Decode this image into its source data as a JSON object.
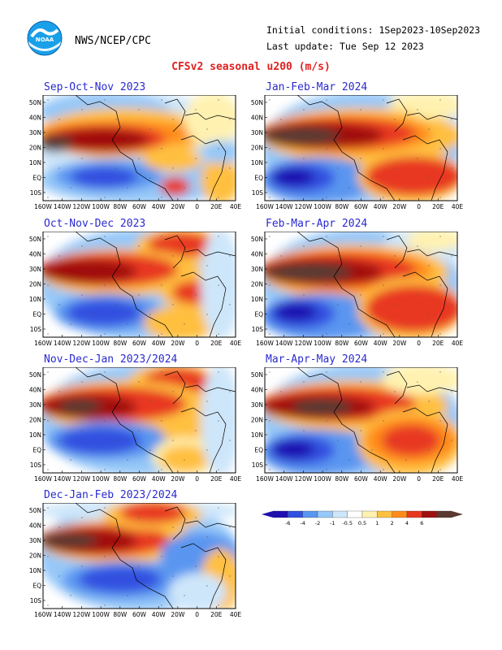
{
  "header": {
    "org": "NWS/NCEP/CPC",
    "initial_conditions": "Initial conditions: 1Sep2023-10Sep2023",
    "last_update": "Last update: Tue Sep 12 2023",
    "title": "CFSv2 seasonal u200 (m/s)",
    "logo_text": "NOAA"
  },
  "axes": {
    "lat_labels": [
      "50N",
      "40N",
      "30N",
      "20N",
      "10N",
      "EQ",
      "10S"
    ],
    "lon_labels": [
      "160W",
      "140W",
      "120W",
      "100W",
      "80W",
      "60W",
      "40W",
      "20W",
      "0",
      "20E",
      "40E"
    ]
  },
  "panels": [
    {
      "title": "Sep-Oct-Nov 2023"
    },
    {
      "title": "Jan-Feb-Mar 2024"
    },
    {
      "title": "Oct-Nov-Dec 2023"
    },
    {
      "title": "Feb-Mar-Apr 2024"
    },
    {
      "title": "Nov-Dec-Jan 2023/2024"
    },
    {
      "title": "Mar-Apr-May 2024"
    },
    {
      "title": "Dec-Jan-Feb 2023/2024"
    }
  ],
  "colorbar": {
    "labels": [
      "-6",
      "-4",
      "-2",
      "-1",
      "-0.5",
      "0.5",
      "1",
      "2",
      "4",
      "6"
    ],
    "colors": [
      "#1f0fb0",
      "#3050e0",
      "#5a96f0",
      "#96c8f8",
      "#cde6fa",
      "#ffffff",
      "#fff2b0",
      "#ffc040",
      "#ff8c1a",
      "#e83820",
      "#a01010",
      "#5a3a30"
    ]
  }
}
